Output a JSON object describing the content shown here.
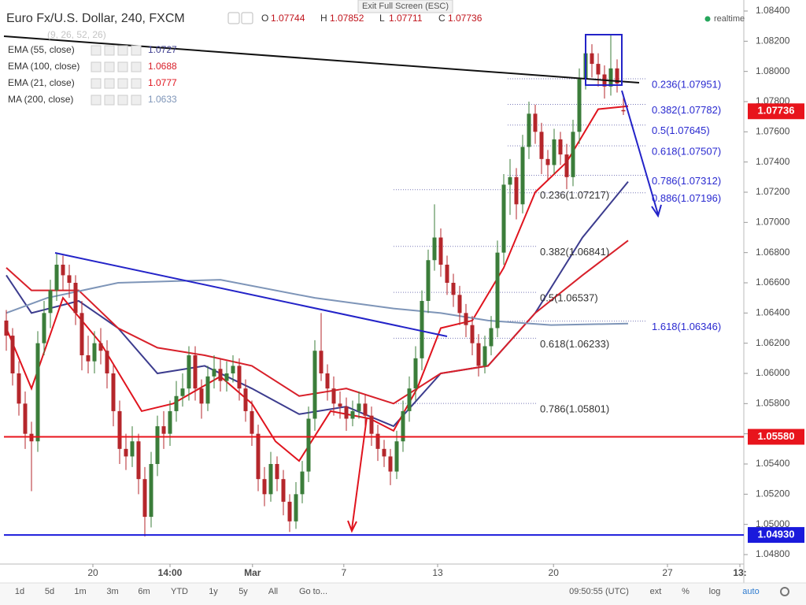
{
  "header": {
    "exit": "Exit Full Screen (ESC)",
    "title": "Euro Fx/U.S. Dollar, 240, FXCM",
    "ohlc": [
      {
        "key": "O",
        "value": 1.07744
      },
      {
        "key": "H",
        "value": 1.07852
      },
      {
        "key": "L",
        "value": 1.07711
      },
      {
        "key": "C",
        "value": 1.07736
      }
    ],
    "status": "realtime",
    "hidden_study": "(9, 26, 52, 26)"
  },
  "chart_data": {
    "type": "candlestick",
    "up_color": "#3b7d3a",
    "down_color": "#b5262b",
    "candles": [
      [
        1.0635,
        1.0642,
        1.0615,
        1.0625
      ],
      [
        1.0625,
        1.063,
        1.0592,
        1.06
      ],
      [
        1.06,
        1.0608,
        1.0572,
        1.058
      ],
      [
        1.058,
        1.0588,
        1.055,
        1.056
      ],
      [
        1.056,
        1.0568,
        1.0522,
        1.0555
      ],
      [
        1.0555,
        1.0628,
        1.0548,
        1.062
      ],
      [
        1.062,
        1.0648,
        1.0612,
        1.064
      ],
      [
        1.064,
        1.0662,
        1.063,
        1.0655
      ],
      [
        1.0655,
        1.068,
        1.0648,
        1.0672
      ],
      [
        1.0672,
        1.0678,
        1.0655,
        1.0665
      ],
      [
        1.0665,
        1.0672,
        1.065,
        1.066
      ],
      [
        1.066,
        1.0665,
        1.0632,
        1.064
      ],
      [
        1.064,
        1.0648,
        1.0602,
        1.0612
      ],
      [
        1.0612,
        1.0625,
        1.06,
        1.0608
      ],
      [
        1.0608,
        1.0628,
        1.06,
        1.062
      ],
      [
        1.062,
        1.063,
        1.0606,
        1.0615
      ],
      [
        1.0615,
        1.0622,
        1.059,
        1.06
      ],
      [
        1.06,
        1.0606,
        1.0565,
        1.0575
      ],
      [
        1.0575,
        1.0582,
        1.054,
        1.055
      ],
      [
        1.055,
        1.056,
        1.0536,
        1.0545
      ],
      [
        1.0545,
        1.0565,
        1.0538,
        1.0555
      ],
      [
        1.0555,
        1.056,
        1.052,
        1.053
      ],
      [
        1.053,
        1.0538,
        1.0492,
        1.0505
      ],
      [
        1.0505,
        1.0548,
        1.0498,
        1.054
      ],
      [
        1.054,
        1.0572,
        1.0532,
        1.0565
      ],
      [
        1.0565,
        1.0575,
        1.055,
        1.056
      ],
      [
        1.056,
        1.0582,
        1.0552,
        1.0575
      ],
      [
        1.0575,
        1.0595,
        1.0568,
        1.0585
      ],
      [
        1.0585,
        1.06,
        1.0578,
        1.059
      ],
      [
        1.059,
        1.0618,
        1.0582,
        1.0612
      ],
      [
        1.0612,
        1.0618,
        1.0582,
        1.059
      ],
      [
        1.059,
        1.0596,
        1.057,
        1.058
      ],
      [
        1.058,
        1.0605,
        1.0575,
        1.0598
      ],
      [
        1.0598,
        1.0612,
        1.059,
        1.0603
      ],
      [
        1.0603,
        1.061,
        1.0588,
        1.0595
      ],
      [
        1.0595,
        1.0608,
        1.0588,
        1.06
      ],
      [
        1.06,
        1.0612,
        1.0594,
        1.0605
      ],
      [
        1.0605,
        1.061,
        1.0582,
        1.059
      ],
      [
        1.059,
        1.0596,
        1.0568,
        1.0575
      ],
      [
        1.0575,
        1.0582,
        1.0552,
        1.056
      ],
      [
        1.056,
        1.0566,
        1.0522,
        1.053
      ],
      [
        1.053,
        1.0538,
        1.0512,
        1.052
      ],
      [
        1.052,
        1.0548,
        1.0515,
        1.054
      ],
      [
        1.054,
        1.0545,
        1.0522,
        1.053
      ],
      [
        1.053,
        1.0536,
        1.0506,
        1.0515
      ],
      [
        1.0515,
        1.052,
        1.0495,
        1.0502
      ],
      [
        1.0502,
        1.0528,
        1.0497,
        1.052
      ],
      [
        1.052,
        1.0542,
        1.0514,
        1.0535
      ],
      [
        1.0535,
        1.0578,
        1.0528,
        1.057
      ],
      [
        1.057,
        1.0622,
        1.0562,
        1.0615
      ],
      [
        1.0615,
        1.064,
        1.0595,
        1.06
      ],
      [
        1.06,
        1.0606,
        1.0582,
        1.059
      ],
      [
        1.059,
        1.0598,
        1.0572,
        1.058
      ],
      [
        1.058,
        1.0588,
        1.057,
        1.0578
      ],
      [
        1.0578,
        1.0584,
        1.0562,
        1.057
      ],
      [
        1.057,
        1.0582,
        1.0565,
        1.0575
      ],
      [
        1.0575,
        1.0588,
        1.057,
        1.058
      ],
      [
        1.058,
        1.0586,
        1.0565,
        1.0572
      ],
      [
        1.0572,
        1.0578,
        1.0552,
        1.056
      ],
      [
        1.056,
        1.0566,
        1.0542,
        1.055
      ],
      [
        1.055,
        1.0556,
        1.0538,
        1.0545
      ],
      [
        1.0545,
        1.055,
        1.0526,
        1.0535
      ],
      [
        1.0535,
        1.0562,
        1.053,
        1.0555
      ],
      [
        1.0555,
        1.0582,
        1.0548,
        1.0575
      ],
      [
        1.0575,
        1.0598,
        1.0568,
        1.059
      ],
      [
        1.059,
        1.0618,
        1.0582,
        1.061
      ],
      [
        1.061,
        1.0655,
        1.0602,
        1.0648
      ],
      [
        1.0648,
        1.0682,
        1.064,
        1.0675
      ],
      [
        1.0675,
        1.0712,
        1.0668,
        1.069
      ],
      [
        1.069,
        1.0696,
        1.0664,
        1.0672
      ],
      [
        1.0672,
        1.0678,
        1.0652,
        1.066
      ],
      [
        1.066,
        1.0666,
        1.0644,
        1.0652
      ],
      [
        1.0652,
        1.0658,
        1.0632,
        1.064
      ],
      [
        1.064,
        1.0646,
        1.0624,
        1.0632
      ],
      [
        1.0632,
        1.0638,
        1.0612,
        1.062
      ],
      [
        1.062,
        1.0626,
        1.0598,
        1.0605
      ],
      [
        1.0605,
        1.0625,
        1.06,
        1.0618
      ],
      [
        1.0618,
        1.0638,
        1.0612,
        1.063
      ],
      [
        1.063,
        1.0688,
        1.0624,
        1.068
      ],
      [
        1.068,
        1.0732,
        1.0672,
        1.0725
      ],
      [
        1.0725,
        1.0742,
        1.0705,
        1.073
      ],
      [
        1.073,
        1.0736,
        1.0702,
        1.0712
      ],
      [
        1.0712,
        1.0758,
        1.0706,
        1.075
      ],
      [
        1.075,
        1.078,
        1.0742,
        1.0772
      ],
      [
        1.0772,
        1.0778,
        1.0752,
        1.076
      ],
      [
        1.076,
        1.0766,
        1.0732,
        1.0742
      ],
      [
        1.0742,
        1.0748,
        1.0728,
        1.0738
      ],
      [
        1.0738,
        1.0762,
        1.0732,
        1.0755
      ],
      [
        1.0755,
        1.076,
        1.0738,
        1.0745
      ],
      [
        1.0745,
        1.0752,
        1.0722,
        1.073
      ],
      [
        1.073,
        1.0768,
        1.0724,
        1.076
      ],
      [
        1.076,
        1.0802,
        1.0752,
        1.0795
      ],
      [
        1.0795,
        1.0822,
        1.0788,
        1.0812
      ],
      [
        1.0812,
        1.0818,
        1.0796,
        1.0805
      ],
      [
        1.0805,
        1.0812,
        1.079,
        1.0798
      ],
      [
        1.0798,
        1.0804,
        1.0782,
        1.079
      ],
      [
        1.079,
        1.0824,
        1.0784,
        1.0802
      ],
      [
        1.0802,
        1.0808,
        1.0786,
        1.0792
      ],
      [
        1.07744,
        1.07852,
        1.07711,
        1.07736
      ]
    ],
    "xlim": [
      -0.375,
      117.125
    ],
    "xticks": [
      {
        "value": 13.75,
        "label": "20"
      },
      {
        "value": 26,
        "label": "14:00"
      },
      {
        "value": 39.1,
        "label": "Mar"
      },
      {
        "value": 53.6,
        "label": "7"
      },
      {
        "value": 68.5,
        "label": "13"
      },
      {
        "value": 86.9,
        "label": "20"
      },
      {
        "value": 105,
        "label": "27"
      },
      {
        "value": 116.5,
        "label": "13:"
      }
    ],
    "ylim": [
      1.048,
      1.084
    ],
    "yticks": [
      {
        "value": 1.048,
        "label": "1.04800"
      },
      {
        "value": 1.05,
        "label": "1.05000"
      },
      {
        "value": 1.052,
        "label": "1.05200"
      },
      {
        "value": 1.054,
        "label": "1.05400"
      },
      {
        "value": 1.056,
        "label": "1.05600"
      },
      {
        "value": 1.058,
        "label": "1.05800"
      },
      {
        "value": 1.06,
        "label": "1.06000"
      },
      {
        "value": 1.062,
        "label": "1.06200"
      },
      {
        "value": 1.064,
        "label": "1.06400"
      },
      {
        "value": 1.066,
        "label": "1.06600"
      },
      {
        "value": 1.068,
        "label": "1.06800"
      },
      {
        "value": 1.07,
        "label": "1.07000"
      },
      {
        "value": 1.072,
        "label": "1.07200"
      },
      {
        "value": 1.074,
        "label": "1.07400"
      },
      {
        "value": 1.076,
        "label": "1.07600"
      },
      {
        "value": 1.078,
        "label": "1.07800"
      },
      {
        "value": 1.08,
        "label": "1.08000"
      },
      {
        "value": 1.082,
        "label": "1.08200"
      },
      {
        "value": 1.084,
        "label": "1.08400"
      }
    ],
    "indicators": [
      {
        "name": "EMA (55, close)",
        "last": 1.0727,
        "color": "#3c3c8e",
        "x": [
          0,
          4,
          11.5,
          17.75,
          24,
          31.5,
          39,
          46.5,
          54,
          61.5,
          69,
          76.5,
          84,
          91.5,
          98.75
        ],
        "values": [
          1.0665,
          1.064,
          1.0648,
          1.063,
          1.06,
          1.0605,
          1.059,
          1.0573,
          1.0578,
          1.0565,
          1.06,
          1.0605,
          1.064,
          1.069,
          1.0727
        ]
      },
      {
        "name": "EMA (100, close)",
        "last": 1.0688,
        "color": "#d8202a",
        "x": [
          0,
          4,
          11.5,
          17.75,
          24,
          31.5,
          39,
          46.5,
          54,
          61.5,
          69,
          76.5,
          84,
          91.5,
          98.75
        ],
        "values": [
          1.067,
          1.0655,
          1.0655,
          1.063,
          1.0617,
          1.0612,
          1.0605,
          1.0585,
          1.059,
          1.058,
          1.06,
          1.0605,
          1.064,
          1.0665,
          1.0688
        ]
      },
      {
        "name": "EMA (21, close)",
        "last": 1.0777,
        "color": "#e0141e",
        "x": [
          0,
          4,
          9,
          15,
          21.5,
          26.5,
          34,
          39,
          42.75,
          46.5,
          51.5,
          57.75,
          61.5,
          65.25,
          69,
          74,
          79,
          84,
          89,
          94,
          98.75
        ],
        "values": [
          1.063,
          1.059,
          1.065,
          1.062,
          1.0575,
          1.058,
          1.0598,
          1.058,
          1.0555,
          1.0542,
          1.0575,
          1.057,
          1.0562,
          1.059,
          1.063,
          1.0635,
          1.067,
          1.072,
          1.074,
          1.0775,
          1.0777
        ]
      },
      {
        "name": "MA (200, close)",
        "last": 1.0633,
        "color": "#7e95b8",
        "x": [
          0,
          6.5,
          17.75,
          34,
          49,
          61.5,
          69,
          76.5,
          86.5,
          98.75
        ],
        "values": [
          1.064,
          1.065,
          1.066,
          1.0662,
          1.065,
          1.0643,
          1.064,
          1.0635,
          1.0632,
          1.0633
        ]
      }
    ],
    "hlines": [
      {
        "value": 1.0558,
        "label": "1.05580",
        "color": "#e8141c"
      },
      {
        "value": 1.0493,
        "label": "1.04930",
        "color": "#1a1adc"
      }
    ],
    "last_price": {
      "value": 1.07736,
      "label": "1.07736",
      "color": "#e8141c"
    },
    "fib_upper": [
      {
        "value": 1.07951,
        "label": "0.236(1.07951)"
      },
      {
        "value": 1.07782,
        "label": "0.382(1.07782)"
      },
      {
        "value": 1.07645,
        "label": "0.5(1.07645)"
      },
      {
        "value": 1.07507,
        "label": "0.618(1.07507)"
      },
      {
        "value": 1.07312,
        "label": "0.786(1.07312)"
      },
      {
        "value": 1.07196,
        "label": "0.886(1.07196)"
      },
      {
        "value": 1.06346,
        "label": "1.618(1.06346)"
      }
    ],
    "fib_lower": [
      {
        "value": 1.07217,
        "label": "0.236(1.07217)"
      },
      {
        "value": 1.06841,
        "label": "0.382(1.06841)"
      },
      {
        "value": 1.06537,
        "label": "0.5(1.06537)"
      },
      {
        "value": 1.06233,
        "label": "0.618(1.06233)"
      },
      {
        "value": 1.05801,
        "label": "0.786(1.05801)"
      }
    ]
  },
  "toolbar": {
    "ranges": [
      "1d",
      "5d",
      "1m",
      "3m",
      "6m",
      "YTD",
      "1y",
      "5y",
      "All"
    ],
    "goto": "Go to...",
    "clock": "09:50:55 (UTC)",
    "options": [
      "ext",
      "%",
      "log",
      "auto"
    ]
  }
}
